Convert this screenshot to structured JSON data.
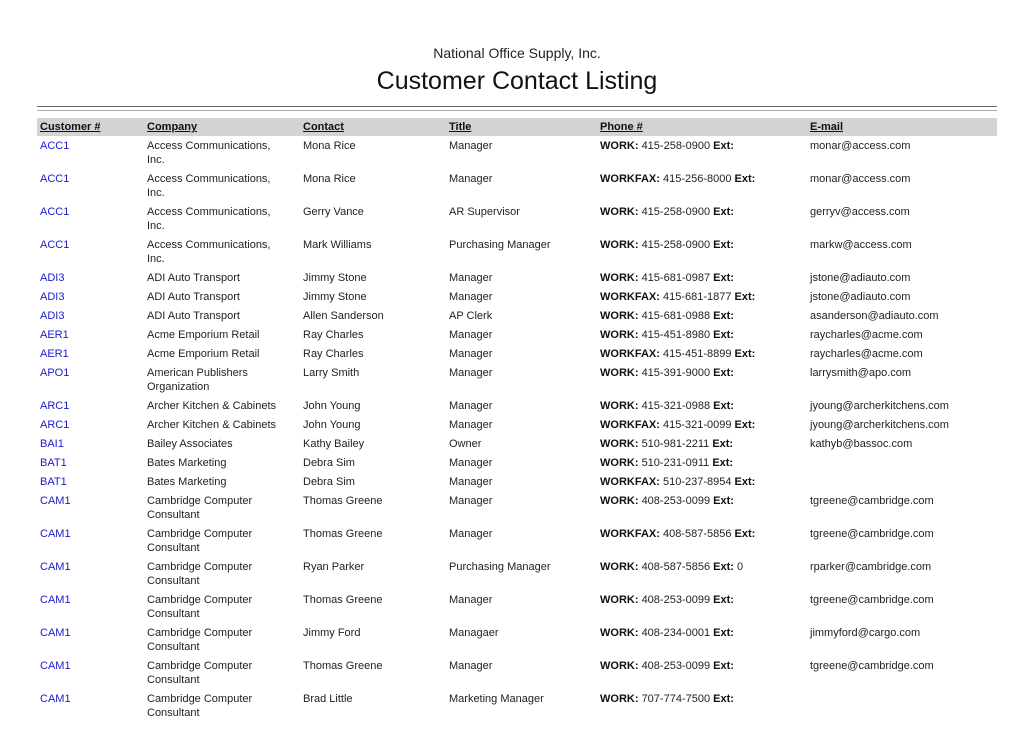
{
  "report": {
    "company": "National Office Supply, Inc.",
    "title": "Customer Contact Listing"
  },
  "columns": [
    "Customer #",
    "Company",
    "Contact",
    "Title",
    "Phone #",
    "E-mail"
  ],
  "rows": [
    {
      "customer": "ACC1",
      "company": "Access Communications,\nInc.",
      "contact": "Mona Rice",
      "title": "Manager",
      "phone_type": "WORK:",
      "phone": "415-258-0900",
      "ext_label": "Ext:",
      "ext": "",
      "email": "monar@access.com"
    },
    {
      "customer": "ACC1",
      "company": "Access Communications,\nInc.",
      "contact": "Mona Rice",
      "title": "Manager",
      "phone_type": "WORKFAX:",
      "phone": "415-256-8000",
      "ext_label": "Ext:",
      "ext": "",
      "email": "monar@access.com"
    },
    {
      "customer": "ACC1",
      "company": "Access Communications,\nInc.",
      "contact": "Gerry Vance",
      "title": "AR Supervisor",
      "phone_type": "WORK:",
      "phone": "415-258-0900",
      "ext_label": "Ext:",
      "ext": "",
      "email": "gerryv@access.com"
    },
    {
      "customer": "ACC1",
      "company": "Access Communications,\nInc.",
      "contact": "Mark Williams",
      "title": "Purchasing Manager",
      "phone_type": "WORK:",
      "phone": "415-258-0900",
      "ext_label": "Ext:",
      "ext": "",
      "email": "markw@access.com"
    },
    {
      "customer": "ADI3",
      "company": "ADI Auto Transport",
      "contact": "Jimmy Stone",
      "title": "Manager",
      "phone_type": "WORK:",
      "phone": "415-681-0987",
      "ext_label": "Ext:",
      "ext": "",
      "email": "jstone@adiauto.com"
    },
    {
      "customer": "ADI3",
      "company": "ADI Auto Transport",
      "contact": "Jimmy Stone",
      "title": "Manager",
      "phone_type": "WORKFAX:",
      "phone": "415-681-1877",
      "ext_label": "Ext:",
      "ext": "",
      "email": "jstone@adiauto.com"
    },
    {
      "customer": "ADI3",
      "company": "ADI Auto Transport",
      "contact": "Allen Sanderson",
      "title": "AP Clerk",
      "phone_type": "WORK:",
      "phone": "415-681-0988",
      "ext_label": "Ext:",
      "ext": "",
      "email": "asanderson@adiauto.com"
    },
    {
      "customer": "AER1",
      "company": "Acme Emporium Retail",
      "contact": "Ray Charles",
      "title": "Manager",
      "phone_type": "WORK:",
      "phone": "415-451-8980",
      "ext_label": "Ext:",
      "ext": "",
      "email": "raycharles@acme.com"
    },
    {
      "customer": "AER1",
      "company": "Acme Emporium Retail",
      "contact": "Ray Charles",
      "title": "Manager",
      "phone_type": "WORKFAX:",
      "phone": "415-451-8899",
      "ext_label": "Ext:",
      "ext": "",
      "email": "raycharles@acme.com"
    },
    {
      "customer": "APO1",
      "company": "American Publishers\nOrganization",
      "contact": "Larry Smith",
      "title": "Manager",
      "phone_type": "WORK:",
      "phone": "415-391-9000",
      "ext_label": "Ext:",
      "ext": "",
      "email": "larrysmith@apo.com"
    },
    {
      "customer": "ARC1",
      "company": "Archer Kitchen & Cabinets",
      "contact": "John Young",
      "title": "Manager",
      "phone_type": "WORK:",
      "phone": "415-321-0988",
      "ext_label": "Ext:",
      "ext": "",
      "email": "jyoung@archerkitchens.com"
    },
    {
      "customer": "ARC1",
      "company": "Archer Kitchen & Cabinets",
      "contact": "John Young",
      "title": "Manager",
      "phone_type": "WORKFAX:",
      "phone": "415-321-0099",
      "ext_label": "Ext:",
      "ext": "",
      "email": "jyoung@archerkitchens.com"
    },
    {
      "customer": "BAI1",
      "company": "Bailey Associates",
      "contact": "Kathy Bailey",
      "title": "Owner",
      "phone_type": "WORK:",
      "phone": "510-981-2211",
      "ext_label": "Ext:",
      "ext": "",
      "email": "kathyb@bassoc.com"
    },
    {
      "customer": "BAT1",
      "company": "Bates Marketing",
      "contact": "Debra Sim",
      "title": "Manager",
      "phone_type": "WORK:",
      "phone": "510-231-0911",
      "ext_label": "Ext:",
      "ext": "",
      "email": ""
    },
    {
      "customer": "BAT1",
      "company": "Bates Marketing",
      "contact": "Debra Sim",
      "title": "Manager",
      "phone_type": "WORKFAX:",
      "phone": "510-237-8954",
      "ext_label": "Ext:",
      "ext": "",
      "email": ""
    },
    {
      "customer": "CAM1",
      "company": "Cambridge Computer\nConsultant",
      "contact": "Thomas Greene",
      "title": "Manager",
      "phone_type": "WORK:",
      "phone": "408-253-0099",
      "ext_label": "Ext:",
      "ext": "",
      "email": "tgreene@cambridge.com"
    },
    {
      "customer": "CAM1",
      "company": "Cambridge Computer\nConsultant",
      "contact": "Thomas Greene",
      "title": "Manager",
      "phone_type": "WORKFAX:",
      "phone": "408-587-5856",
      "ext_label": "Ext:",
      "ext": "",
      "email": "tgreene@cambridge.com"
    },
    {
      "customer": "CAM1",
      "company": "Cambridge Computer\nConsultant",
      "contact": "Ryan Parker",
      "title": "Purchasing Manager",
      "phone_type": "WORK:",
      "phone": "408-587-5856",
      "ext_label": "Ext:",
      "ext": "0",
      "email": "rparker@cambridge.com"
    },
    {
      "customer": "CAM1",
      "company": "Cambridge Computer\nConsultant",
      "contact": " Thomas Greene",
      "title": "Manager",
      "phone_type": "WORK:",
      "phone": "408-253-0099",
      "ext_label": "Ext:",
      "ext": "",
      "email": "tgreene@cambridge.com"
    },
    {
      "customer": "CAM1",
      "company": "Cambridge Computer\nConsultant",
      "contact": " Jimmy Ford",
      "title": "Managaer",
      "phone_type": "WORK:",
      "phone": "408-234-0001",
      "ext_label": "Ext:",
      "ext": "",
      "email": "jimmyford@cargo.com"
    },
    {
      "customer": "CAM1",
      "company": "Cambridge Computer\nConsultant",
      "contact": " Thomas Greene",
      "title": "Manager",
      "phone_type": "WORK:",
      "phone": "408-253-0099",
      "ext_label": "Ext:",
      "ext": "",
      "email": "tgreene@cambridge.com"
    },
    {
      "customer": "CAM1",
      "company": "Cambridge Computer\nConsultant",
      "contact": "Brad Little",
      "title": "Marketing Manager",
      "phone_type": "WORK:",
      "phone": "707-774-7500",
      "ext_label": "Ext:",
      "ext": "",
      "email": ""
    }
  ]
}
